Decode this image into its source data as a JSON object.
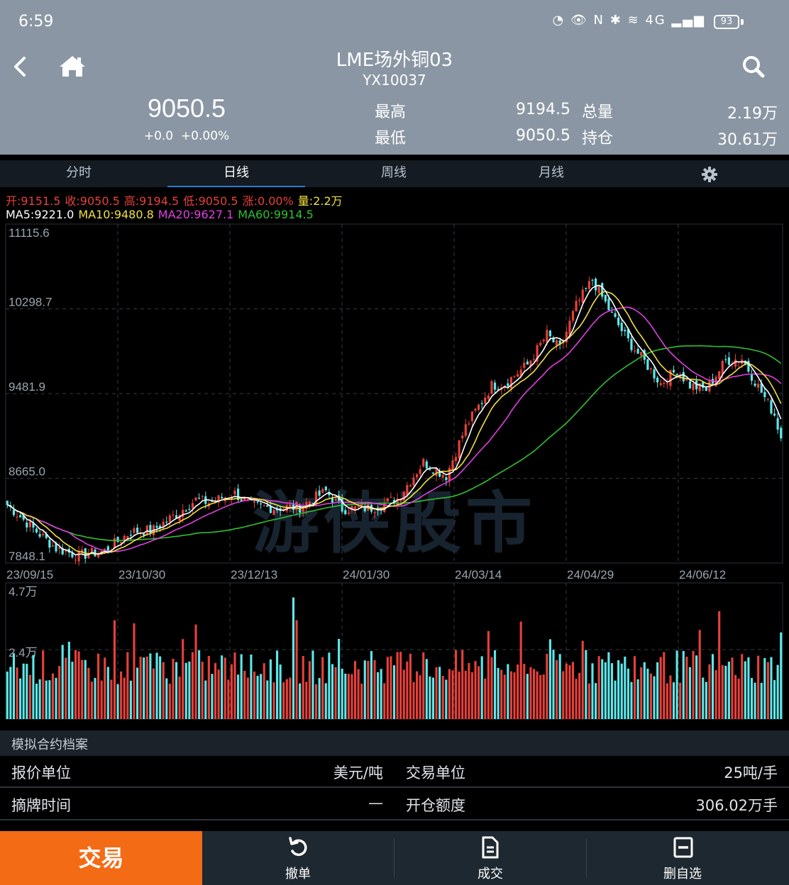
{
  "status_bar": {
    "time": "6:59",
    "icons": "◔ 👁 N ✱ ≋ 4G ▂▄▆",
    "battery": "93"
  },
  "header": {
    "title": "LME场外铜03",
    "code": "YX10037",
    "last_price": "9050.5",
    "change": "+0.0",
    "change_pct": "+0.00%",
    "high_label": "最高",
    "high_value": "9194.5",
    "low_label": "最低",
    "low_value": "9050.5",
    "volume_label": "总量",
    "volume_value": "2.19万",
    "oi_label": "持仓",
    "oi_value": "30.61万"
  },
  "tabs": [
    {
      "label": "分时"
    },
    {
      "label": "日线",
      "active": true
    },
    {
      "label": "周线"
    },
    {
      "label": "月线"
    }
  ],
  "ohlc": {
    "open": "开:9151.5",
    "close": "收:9050.5",
    "high": "高:9194.5",
    "low": "低:9050.5",
    "change": "涨:0.00%",
    "volume": "量:2.2万"
  },
  "ma": {
    "ma5": "MA5:9221.0",
    "ma10": "MA10:9480.8",
    "ma20": "MA20:9627.1",
    "ma60": "MA60:9914.5"
  },
  "colors": {
    "up": "#e8403a",
    "down": "#5de8ea",
    "ma5": "#ffffff",
    "ma10": "#f0e040",
    "ma20": "#e040e0",
    "ma60": "#30c030",
    "accent": "#f46b16",
    "header_bg": "#8a96a3"
  },
  "watermark": "游侠股市",
  "chart_data": {
    "type": "candlestick",
    "price_axis": [
      "11115.6",
      "10298.7",
      "9481.9",
      "8665.0",
      "7848.1"
    ],
    "volume_axis": [
      "4.7万",
      "2.4万"
    ],
    "x_labels": [
      "23/09/15",
      "23/10/30",
      "23/12/13",
      "24/01/30",
      "24/03/14",
      "24/04/29",
      "24/06/12"
    ],
    "price_range": [
      7848.1,
      11115.6
    ],
    "volume_range": [
      0,
      4.7
    ],
    "volume_unit": "万",
    "close_keypoints": [
      [
        0,
        8410
      ],
      [
        8,
        8180
      ],
      [
        15,
        7990
      ],
      [
        22,
        7920
      ],
      [
        30,
        7965
      ],
      [
        38,
        8150
      ],
      [
        45,
        8170
      ],
      [
        52,
        8320
      ],
      [
        58,
        8460
      ],
      [
        62,
        8430
      ],
      [
        70,
        8520
      ],
      [
        75,
        8400
      ],
      [
        82,
        8380
      ],
      [
        90,
        8390
      ],
      [
        98,
        8540
      ],
      [
        103,
        8370
      ],
      [
        112,
        8380
      ],
      [
        120,
        8470
      ],
      [
        128,
        8820
      ],
      [
        135,
        8690
      ],
      [
        141,
        9160
      ],
      [
        149,
        9560
      ],
      [
        153,
        9580
      ],
      [
        160,
        9760
      ],
      [
        166,
        10050
      ],
      [
        170,
        9910
      ],
      [
        175,
        10330
      ],
      [
        180,
        10580
      ],
      [
        186,
        10240
      ],
      [
        191,
        9990
      ],
      [
        196,
        9790
      ],
      [
        201,
        9580
      ],
      [
        206,
        9710
      ],
      [
        210,
        9560
      ],
      [
        215,
        9520
      ],
      [
        221,
        9800
      ],
      [
        226,
        9820
      ],
      [
        231,
        9550
      ],
      [
        236,
        9280
      ],
      [
        238,
        9050.5
      ]
    ],
    "ma5_last": 9221.0,
    "ma10_last": 9480.8,
    "ma20_last": 9627.1,
    "ma60_last": 9914.5,
    "bars": 239
  },
  "info": {
    "title": "模拟合约档案",
    "rows": [
      {
        "l1": "报价单位",
        "v1": "美元/吨",
        "l2": "交易单位",
        "v2": "25吨/手"
      },
      {
        "l1": "摘牌时间",
        "v1": "—",
        "l2": "开仓额度",
        "v2": "306.02万手"
      }
    ]
  },
  "bottom": {
    "trade": "交易",
    "cancel": "撤单",
    "deals": "成交",
    "remove_fav": "删自选"
  }
}
